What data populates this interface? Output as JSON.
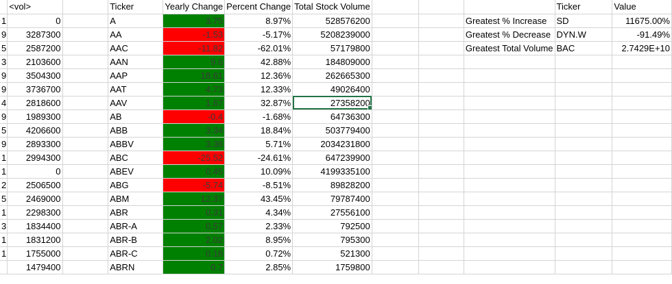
{
  "columns": {
    "vol": "<vol>",
    "ticker": "Ticker",
    "yearly_change": "Yearly Change",
    "percent_change": "Percent Change",
    "total_volume": "Total Stock Volume",
    "summary_ticker": "Ticker",
    "summary_value": "Value"
  },
  "rows": [
    {
      "gutter": "1",
      "vol": "0",
      "ticker": "A",
      "change": "3.75",
      "sign": "pos",
      "pct": "8.97%",
      "total": "528576200"
    },
    {
      "gutter": "9",
      "vol": "3287300",
      "ticker": "AA",
      "change": "-1.53",
      "sign": "neg",
      "pct": "-5.17%",
      "total": "5208239000"
    },
    {
      "gutter": "5",
      "vol": "2587200",
      "ticker": "AAC",
      "change": "-11.82",
      "sign": "neg",
      "pct": "-62.01%",
      "total": "57179800"
    },
    {
      "gutter": "3",
      "vol": "2103600",
      "ticker": "AAN",
      "change": "9.6",
      "sign": "pos",
      "pct": "42.88%",
      "total": "184809000"
    },
    {
      "gutter": "9",
      "vol": "3504300",
      "ticker": "AAP",
      "change": "18.61",
      "sign": "pos",
      "pct": "12.36%",
      "total": "262665300"
    },
    {
      "gutter": "9",
      "vol": "3736700",
      "ticker": "AAT",
      "change": "4.73",
      "sign": "pos",
      "pct": "12.33%",
      "total": "49026400"
    },
    {
      "gutter": "4",
      "vol": "2818600",
      "ticker": "AAV",
      "change": "1.67",
      "sign": "pos",
      "pct": "32.87%",
      "total": "27358200",
      "selected": true
    },
    {
      "gutter": "9",
      "vol": "1989300",
      "ticker": "AB",
      "change": "-0.4",
      "sign": "neg",
      "pct": "-1.68%",
      "total": "64736300"
    },
    {
      "gutter": "5",
      "vol": "4206600",
      "ticker": "ABB",
      "change": "3.34",
      "sign": "pos",
      "pct": "18.84%",
      "total": "503779400"
    },
    {
      "gutter": "9",
      "vol": "2893300",
      "ticker": "ABBV",
      "change": "3.38",
      "sign": "pos",
      "pct": "5.71%",
      "total": "2034231800"
    },
    {
      "gutter": "1",
      "vol": "2994300",
      "ticker": "ABC",
      "change": "-25.52",
      "sign": "neg",
      "pct": "-24.61%",
      "total": "647239900"
    },
    {
      "gutter": "1",
      "vol": "0",
      "ticker": "ABEV",
      "change": "0.45",
      "sign": "pos",
      "pct": "10.09%",
      "total": "4199335100"
    },
    {
      "gutter": "2",
      "vol": "2506500",
      "ticker": "ABG",
      "change": "-5.74",
      "sign": "neg",
      "pct": "-8.51%",
      "total": "89828200"
    },
    {
      "gutter": "5",
      "vol": "2469000",
      "ticker": "ABM",
      "change": "12.37",
      "sign": "pos",
      "pct": "43.45%",
      "total": "79787400"
    },
    {
      "gutter": "1",
      "vol": "2298300",
      "ticker": "ABR",
      "change": "0.31",
      "sign": "pos",
      "pct": "4.34%",
      "total": "27556100"
    },
    {
      "gutter": "3",
      "vol": "1834400",
      "ticker": "ABR-A",
      "change": "0.57",
      "sign": "pos",
      "pct": "2.33%",
      "total": "792500"
    },
    {
      "gutter": "1",
      "vol": "1831200",
      "ticker": "ABR-B",
      "change": "2.02",
      "sign": "pos",
      "pct": "8.95%",
      "total": "795300"
    },
    {
      "gutter": "1",
      "vol": "1755000",
      "ticker": "ABR-C",
      "change": "0.18",
      "sign": "pos",
      "pct": "0.72%",
      "total": "521300"
    },
    {
      "gutter": "",
      "vol": "1479400",
      "ticker": "ABRN",
      "change": "0.7",
      "sign": "pos",
      "pct": "2.85%",
      "total": "1759800"
    }
  ],
  "summary": [
    {
      "label": "Greatest % Increase",
      "ticker": "SD",
      "value": "11675.00%"
    },
    {
      "label": "Greatest % Decrease",
      "ticker": "DYN.W",
      "value": "-91.49%"
    },
    {
      "label": "Greatest Total Volume",
      "ticker": "BAC",
      "value": "2.7429E+10"
    }
  ],
  "colors": {
    "positive": "#008000",
    "negative": "#ff0000",
    "selection": "#217346",
    "gridline": "#d4d4d4"
  }
}
